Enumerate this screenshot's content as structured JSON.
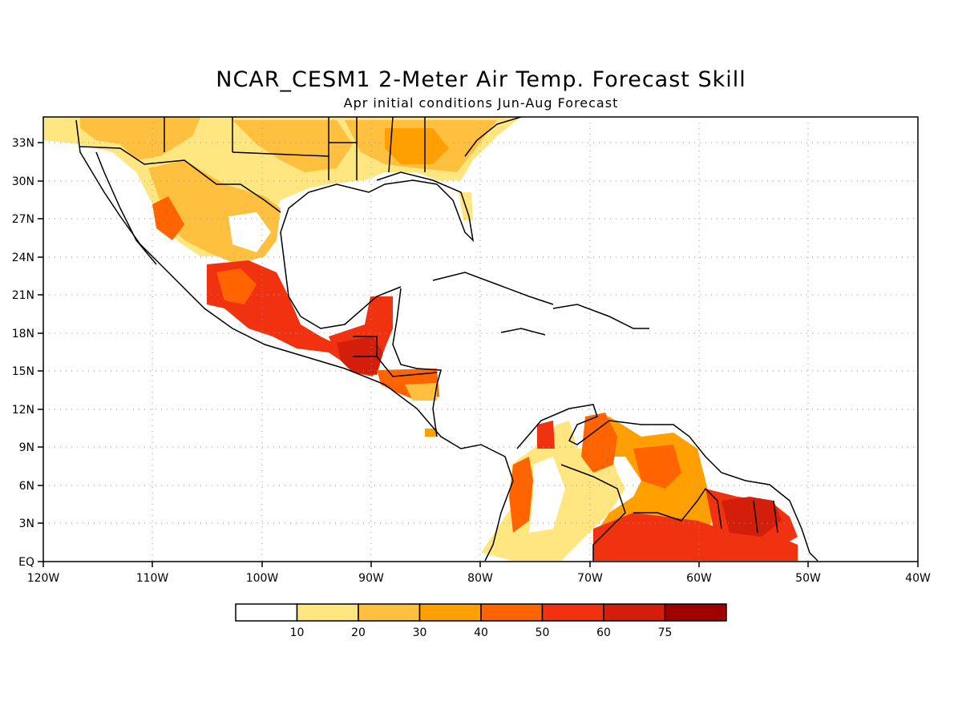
{
  "title": "NCAR_CESM1 2-Meter Air Temp. Forecast Skill",
  "subtitle": "Apr initial conditions  Jun-Aug Forecast",
  "map": {
    "lon_range": [
      -120,
      -40
    ],
    "lat_range": [
      0,
      35
    ],
    "lon_ticks": [
      "120W",
      "110W",
      "100W",
      "90W",
      "80W",
      "70W",
      "60W",
      "50W",
      "40W"
    ],
    "lat_ticks": [
      "EQ",
      "3N",
      "6N",
      "9N",
      "12N",
      "15N",
      "18N",
      "21N",
      "24N",
      "27N",
      "30N",
      "33N"
    ],
    "grid": true
  },
  "colorbar": {
    "labels": [
      "10",
      "20",
      "30",
      "40",
      "50",
      "60",
      "75"
    ],
    "colors": [
      "#ffffff",
      "#ffe680",
      "#ffc040",
      "#ffa000",
      "#ff6400",
      "#f03210",
      "#d21e0a",
      "#a00000"
    ]
  }
}
